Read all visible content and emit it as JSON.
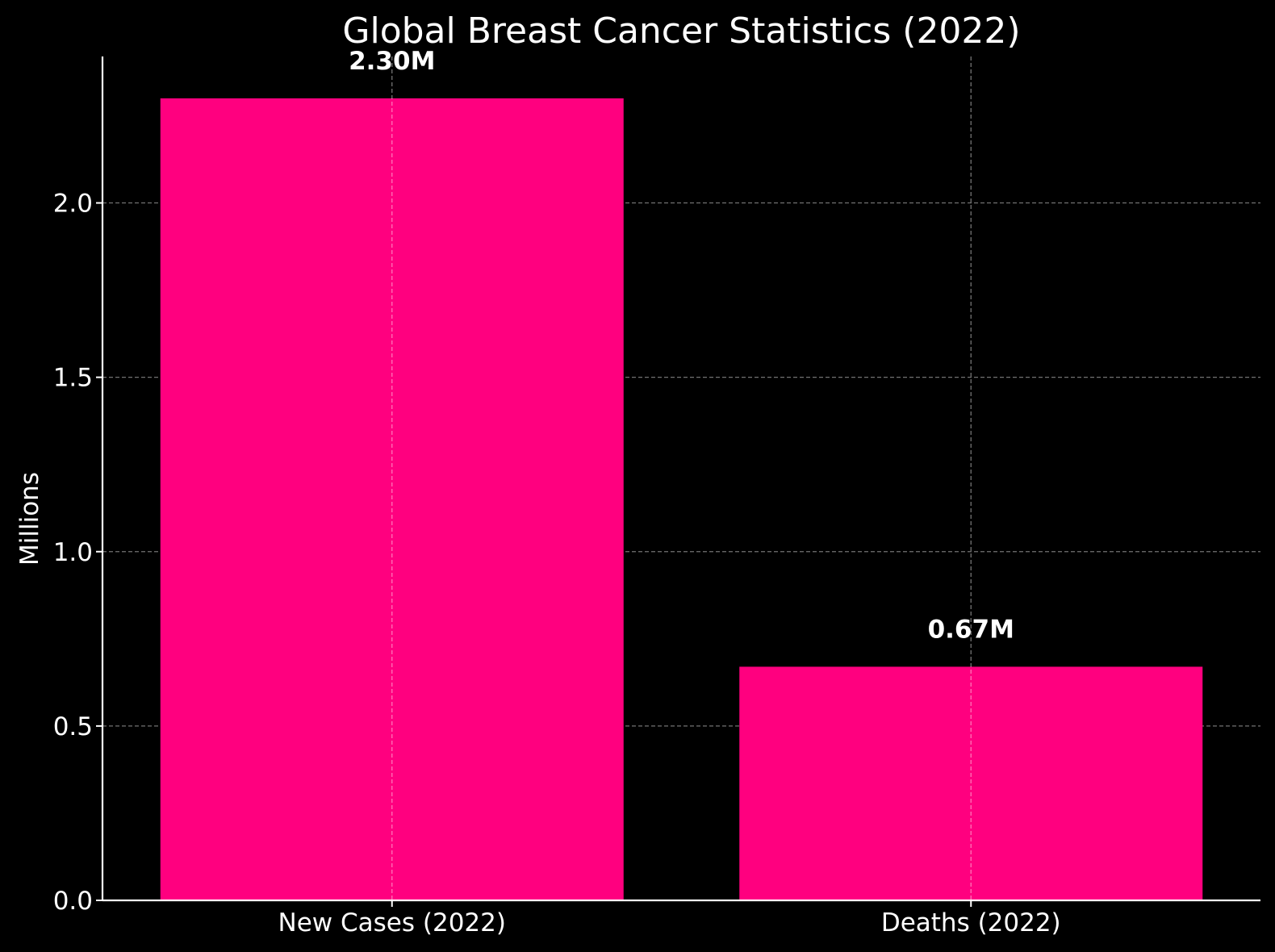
{
  "chart_data": {
    "type": "bar",
    "title": "Global Breast Cancer Statistics (2022)",
    "xlabel": "",
    "ylabel": "Millions",
    "categories": [
      "New Cases (2022)",
      "Deaths (2022)"
    ],
    "values": [
      2.3,
      0.67
    ],
    "data_labels": [
      "2.30M",
      "0.67M"
    ],
    "ylim": [
      0,
      2.42
    ],
    "yticks": [
      0.0,
      0.5,
      1.0,
      1.5,
      2.0
    ],
    "ytick_labels": [
      "0.0",
      "0.5",
      "1.0",
      "1.5",
      "2.0"
    ],
    "grid": true,
    "bar_color": "#ff007f",
    "background": "#000000",
    "text_color": "#ffffff"
  }
}
